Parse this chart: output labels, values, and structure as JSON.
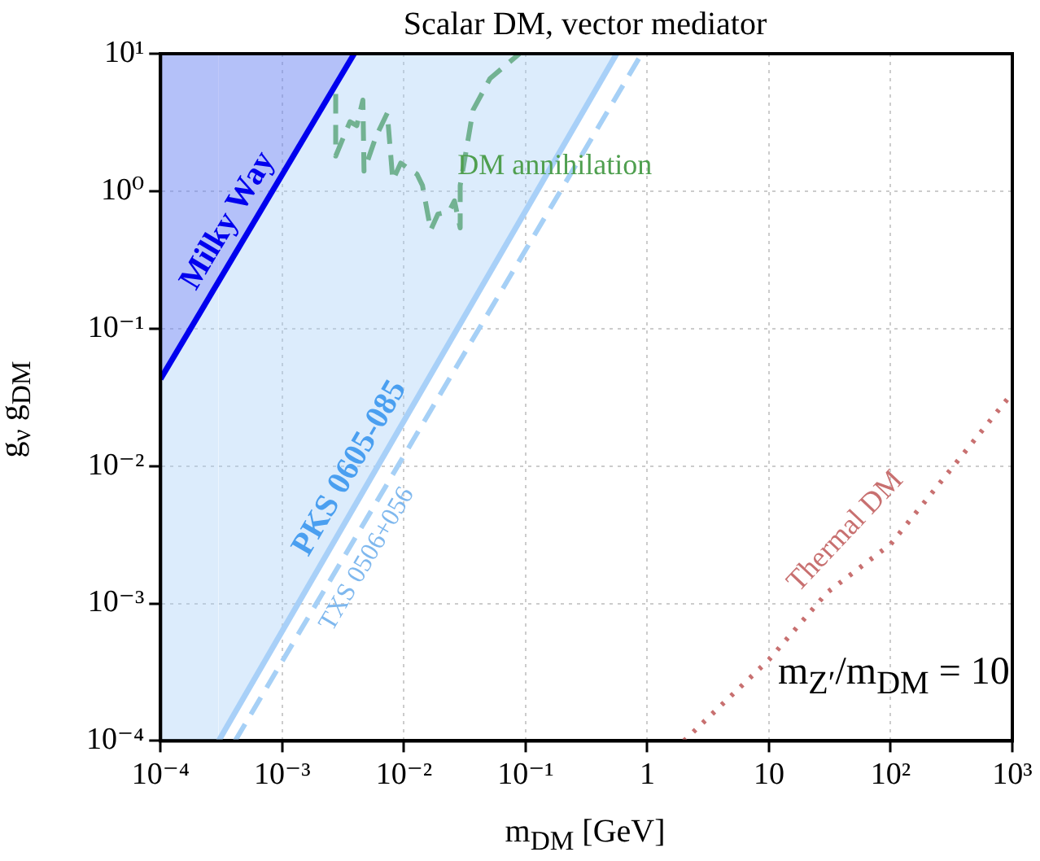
{
  "chart_data": {
    "type": "line",
    "title": "Scalar DM, vector mediator",
    "xlabel": "m$_{DM}$ [GeV]",
    "ylabel": "g$_{ν}$ g$_{DM}$",
    "log": "xy",
    "grid": true,
    "legend": false,
    "xlim": [
      0.0001,
      1000
    ],
    "ylim": [
      0.0001,
      10
    ],
    "xticks": [
      {
        "value": 0.0001,
        "label": "10⁻⁴"
      },
      {
        "value": 0.001,
        "label": "10⁻³"
      },
      {
        "value": 0.01,
        "label": "10⁻²"
      },
      {
        "value": 0.1,
        "label": "10⁻¹"
      },
      1,
      10,
      {
        "value": 100,
        "label": "10²"
      },
      {
        "value": 1000,
        "label": "10³"
      }
    ],
    "yticks": [
      {
        "value": 0.0001,
        "label": "10⁻⁴"
      },
      {
        "value": 0.001,
        "label": "10⁻³"
      },
      {
        "value": 0.01,
        "label": "10⁻²"
      },
      {
        "value": 0.1,
        "label": "10⁻¹"
      },
      {
        "value": 1,
        "label": "10⁰"
      },
      {
        "value": 10,
        "label": "10¹"
      }
    ],
    "series": [
      {
        "name": "Milky Way",
        "type": "area",
        "color": "#0000ee",
        "line_style": "solid",
        "x": [
          0.0001,
          0.0039
        ],
        "values": [
          0.043,
          10
        ]
      },
      {
        "name": "PKS 0605-085",
        "type": "area",
        "color": "#a8d0f8",
        "line_style": "solid",
        "x": [
          0.0001,
          0.0001,
          0.0003,
          0.56
        ],
        "values": [
          10,
          0.0001,
          0.0001,
          10
        ]
      },
      {
        "name": "TXS 0506+056",
        "color": "#a6d0f6",
        "line_style": "dashed",
        "x": [
          0.00041,
          0.9
        ],
        "values": [
          0.0001,
          10
        ]
      },
      {
        "name": "Thermal DM",
        "color": "#c87070",
        "line_style": "dotted",
        "x": [
          2,
          10,
          30,
          100,
          1000
        ],
        "values": [
          0.0001,
          0.00039,
          0.0012,
          0.0027,
          0.034
        ]
      },
      {
        "name": "DM annihilation",
        "color": "#4f9f4f",
        "line_style": "dashed",
        "x": [
          0.00275,
          0.00275,
          0.0036,
          0.0041,
          0.0046,
          0.0047,
          0.0059,
          0.0073,
          0.0081,
          0.0094,
          0.011,
          0.0128,
          0.0142,
          0.0166,
          0.019,
          0.0235,
          0.026,
          0.029,
          0.029,
          0.034,
          0.037,
          0.051,
          0.089
        ],
        "values": [
          5.1,
          1.8,
          3.2,
          3.0,
          4.6,
          1.4,
          2.5,
          3.7,
          1.2,
          1.6,
          1.45,
          1.33,
          1.1,
          0.52,
          0.68,
          0.71,
          0.85,
          0.54,
          1.1,
          2.5,
          3.9,
          6.6,
          10
        ]
      }
    ],
    "annotations": [
      "m$_{Z′}$/m$_{DM}$ = 10"
    ]
  }
}
